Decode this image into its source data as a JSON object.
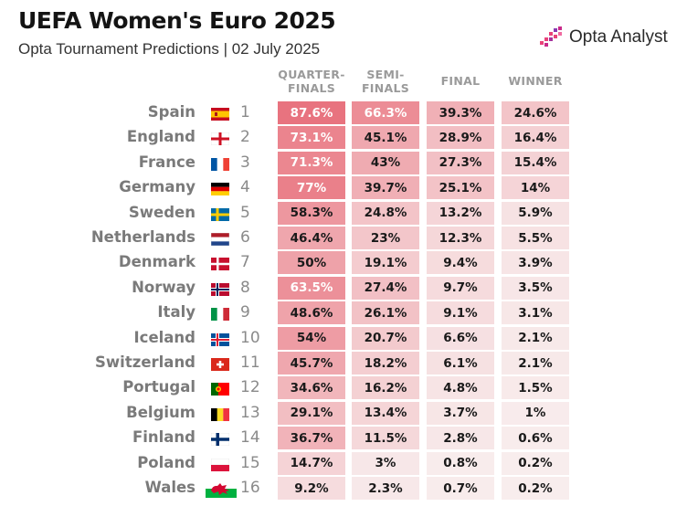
{
  "title": "UEFA Women's Euro 2025",
  "subtitle": "Opta Tournament Predictions | 02 July 2025",
  "logo": {
    "text": "Opta Analyst",
    "icon": "opta-bars-icon"
  },
  "colors": {
    "heat_max": "#e8707c",
    "heat_min": "#f8eeee",
    "text_dark": "#1a1a1a",
    "text_light": "#ffffff"
  },
  "columns": [
    {
      "label_line1": "QUARTER-",
      "label_line2": "FINALS"
    },
    {
      "label_line1": "SEMI-",
      "label_line2": "FINALS"
    },
    {
      "label_line1": "FINAL",
      "label_line2": ""
    },
    {
      "label_line1": "WINNER",
      "label_line2": ""
    }
  ],
  "teams": [
    {
      "name": "Spain",
      "rank": "1",
      "flag": "spain-flag",
      "values": [
        "87.6%",
        "66.3%",
        "39.3%",
        "24.6%"
      ]
    },
    {
      "name": "England",
      "rank": "2",
      "flag": "england-flag",
      "values": [
        "73.1%",
        "45.1%",
        "28.9%",
        "16.4%"
      ]
    },
    {
      "name": "France",
      "rank": "3",
      "flag": "france-flag",
      "values": [
        "71.3%",
        "43%",
        "27.3%",
        "15.4%"
      ]
    },
    {
      "name": "Germany",
      "rank": "4",
      "flag": "germany-flag",
      "values": [
        "77%",
        "39.7%",
        "25.1%",
        "14%"
      ]
    },
    {
      "name": "Sweden",
      "rank": "5",
      "flag": "sweden-flag",
      "values": [
        "58.3%",
        "24.8%",
        "13.2%",
        "5.9%"
      ]
    },
    {
      "name": "Netherlands",
      "rank": "6",
      "flag": "netherlands-flag",
      "values": [
        "46.4%",
        "23%",
        "12.3%",
        "5.5%"
      ]
    },
    {
      "name": "Denmark",
      "rank": "7",
      "flag": "denmark-flag",
      "values": [
        "50%",
        "19.1%",
        "9.4%",
        "3.9%"
      ]
    },
    {
      "name": "Norway",
      "rank": "8",
      "flag": "norway-flag",
      "values": [
        "63.5%",
        "27.4%",
        "9.7%",
        "3.5%"
      ]
    },
    {
      "name": "Italy",
      "rank": "9",
      "flag": "italy-flag",
      "values": [
        "48.6%",
        "26.1%",
        "9.1%",
        "3.1%"
      ]
    },
    {
      "name": "Iceland",
      "rank": "10",
      "flag": "iceland-flag",
      "values": [
        "54%",
        "20.7%",
        "6.6%",
        "2.1%"
      ]
    },
    {
      "name": "Switzerland",
      "rank": "11",
      "flag": "switzerland-flag",
      "values": [
        "45.7%",
        "18.2%",
        "6.1%",
        "2.1%"
      ]
    },
    {
      "name": "Portugal",
      "rank": "12",
      "flag": "portugal-flag",
      "values": [
        "34.6%",
        "16.2%",
        "4.8%",
        "1.5%"
      ]
    },
    {
      "name": "Belgium",
      "rank": "13",
      "flag": "belgium-flag",
      "values": [
        "29.1%",
        "13.4%",
        "3.7%",
        "1%"
      ]
    },
    {
      "name": "Finland",
      "rank": "14",
      "flag": "finland-flag",
      "values": [
        "36.7%",
        "11.5%",
        "2.8%",
        "0.6%"
      ]
    },
    {
      "name": "Poland",
      "rank": "15",
      "flag": "poland-flag",
      "values": [
        "14.7%",
        "3%",
        "0.8%",
        "0.2%"
      ]
    },
    {
      "name": "Wales",
      "rank": "16",
      "flag": "wales-flag",
      "values": [
        "9.2%",
        "2.3%",
        "0.7%",
        "0.2%"
      ]
    }
  ],
  "chart_data": {
    "type": "heatmap",
    "title": "UEFA Women's Euro 2025",
    "subtitle": "Opta Tournament Predictions | 02 July 2025",
    "x_categories": [
      "QUARTER-FINALS",
      "SEMI-FINALS",
      "FINAL",
      "WINNER"
    ],
    "y_categories": [
      "Spain",
      "England",
      "France",
      "Germany",
      "Sweden",
      "Netherlands",
      "Denmark",
      "Norway",
      "Italy",
      "Iceland",
      "Switzerland",
      "Portugal",
      "Belgium",
      "Finland",
      "Poland",
      "Wales"
    ],
    "values": [
      [
        87.6,
        66.3,
        39.3,
        24.6
      ],
      [
        73.1,
        45.1,
        28.9,
        16.4
      ],
      [
        71.3,
        43,
        27.3,
        15.4
      ],
      [
        77,
        39.7,
        25.1,
        14
      ],
      [
        58.3,
        24.8,
        13.2,
        5.9
      ],
      [
        46.4,
        23,
        12.3,
        5.5
      ],
      [
        50,
        19.1,
        9.4,
        3.9
      ],
      [
        63.5,
        27.4,
        9.7,
        3.5
      ],
      [
        48.6,
        26.1,
        9.1,
        3.1
      ],
      [
        54,
        20.7,
        6.6,
        2.1
      ],
      [
        45.7,
        18.2,
        6.1,
        2.1
      ],
      [
        34.6,
        16.2,
        4.8,
        1.5
      ],
      [
        29.1,
        13.4,
        3.7,
        1
      ],
      [
        36.7,
        11.5,
        2.8,
        0.6
      ],
      [
        14.7,
        3,
        0.8,
        0.2
      ],
      [
        9.2,
        2.3,
        0.7,
        0.2
      ]
    ],
    "unit": "%"
  }
}
